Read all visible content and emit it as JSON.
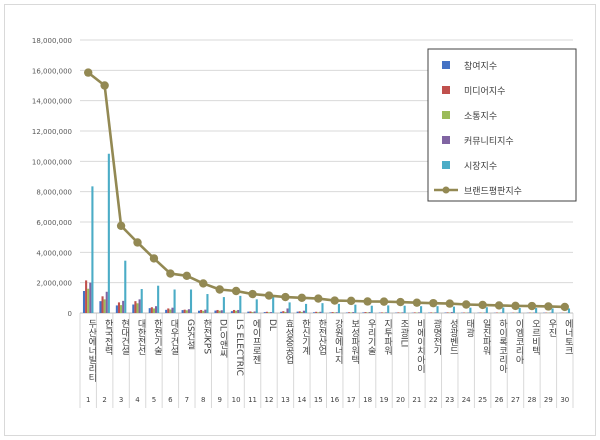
{
  "chart_data": {
    "type": "bar",
    "title": "",
    "xlabel": "",
    "ylabel": "",
    "ylim": [
      0,
      18000000
    ],
    "yticks": [
      0,
      2000000,
      4000000,
      6000000,
      8000000,
      10000000,
      12000000,
      14000000,
      16000000,
      18000000
    ],
    "ytick_labels": [
      "0",
      "2,000,000",
      "4,000,000",
      "6,000,000",
      "8,000,000",
      "10,000,000",
      "12,000,000",
      "14,000,000",
      "16,000,000",
      "18,000,000"
    ],
    "grid": true,
    "legend_position": "top-right",
    "categories": [
      "두산에너빌리티",
      "한국전력",
      "현대건설",
      "대한전선",
      "한전기술",
      "대우건설",
      "GS건설",
      "한전KPS",
      "DL이앤씨",
      "LS ELECTRIC",
      "에이프로젠",
      "DL",
      "효성중공업",
      "한신기계",
      "한전산업",
      "강원에너지",
      "보성파워텍",
      "우리기술",
      "지투파워",
      "조광ILI",
      "비에이치아이",
      "광명전기",
      "성광벤드",
      "태광",
      "일진파워",
      "하이록코리아",
      "이엠코리아",
      "오르비텍",
      "우진",
      "에너토크"
    ],
    "ranks": [
      "1",
      "2",
      "3",
      "4",
      "5",
      "6",
      "7",
      "8",
      "9",
      "10",
      "11",
      "12",
      "13",
      "14",
      "15",
      "16",
      "17",
      "18",
      "19",
      "20",
      "21",
      "22",
      "23",
      "24",
      "25",
      "26",
      "27",
      "28",
      "29",
      "30"
    ],
    "series": [
      {
        "name": "참여지수",
        "type": "bar",
        "color": "#4472C4",
        "values": [
          1450000,
          780000,
          500000,
          560000,
          320000,
          210000,
          190000,
          150000,
          160000,
          120000,
          90000,
          60000,
          80000,
          90000,
          50000,
          40000,
          30000,
          40000,
          30000,
          25000,
          20000,
          25000,
          30000,
          20000,
          20000,
          15000,
          15000,
          15000,
          20000,
          15000
        ]
      },
      {
        "name": "미디어지수",
        "type": "bar",
        "color": "#C0504D",
        "values": [
          2150000,
          1100000,
          700000,
          780000,
          380000,
          300000,
          220000,
          200000,
          200000,
          200000,
          100000,
          80000,
          120000,
          110000,
          80000,
          60000,
          50000,
          60000,
          40000,
          40000,
          40000,
          40000,
          40000,
          30000,
          30000,
          30000,
          25000,
          25000,
          25000,
          20000
        ]
      },
      {
        "name": "소통지수",
        "type": "bar",
        "color": "#9BBB59",
        "values": [
          1600000,
          900000,
          520000,
          640000,
          300000,
          230000,
          180000,
          140000,
          150000,
          150000,
          60000,
          50000,
          70000,
          70000,
          50000,
          40000,
          40000,
          40000,
          30000,
          30000,
          30000,
          30000,
          30000,
          25000,
          25000,
          20000,
          20000,
          20000,
          20000,
          15000
        ]
      },
      {
        "name": "커뮤니티지수",
        "type": "bar",
        "color": "#8064A2",
        "values": [
          2000000,
          1400000,
          800000,
          900000,
          450000,
          350000,
          250000,
          220000,
          180000,
          200000,
          100000,
          60000,
          300000,
          150000,
          80000,
          50000,
          60000,
          60000,
          40000,
          40000,
          40000,
          40000,
          60000,
          30000,
          30000,
          30000,
          25000,
          25000,
          25000,
          20000
        ]
      },
      {
        "name": "시장지수",
        "type": "bar",
        "color": "#4BACC6",
        "values": [
          8350000,
          10500000,
          3450000,
          1580000,
          1800000,
          1550000,
          1550000,
          1250000,
          1050000,
          1130000,
          900000,
          1080000,
          700000,
          600000,
          650000,
          600000,
          550000,
          480000,
          500000,
          480000,
          450000,
          450000,
          420000,
          350000,
          380000,
          360000,
          330000,
          330000,
          300000,
          300000
        ]
      },
      {
        "name": "브랜드평판지수",
        "type": "line",
        "color": "#938953",
        "values": [
          15850000,
          15000000,
          5750000,
          4650000,
          3600000,
          2600000,
          2450000,
          1950000,
          1550000,
          1450000,
          1250000,
          1150000,
          1050000,
          1000000,
          950000,
          820000,
          800000,
          760000,
          750000,
          720000,
          680000,
          650000,
          620000,
          560000,
          530000,
          500000,
          470000,
          460000,
          430000,
          400000
        ]
      }
    ]
  }
}
